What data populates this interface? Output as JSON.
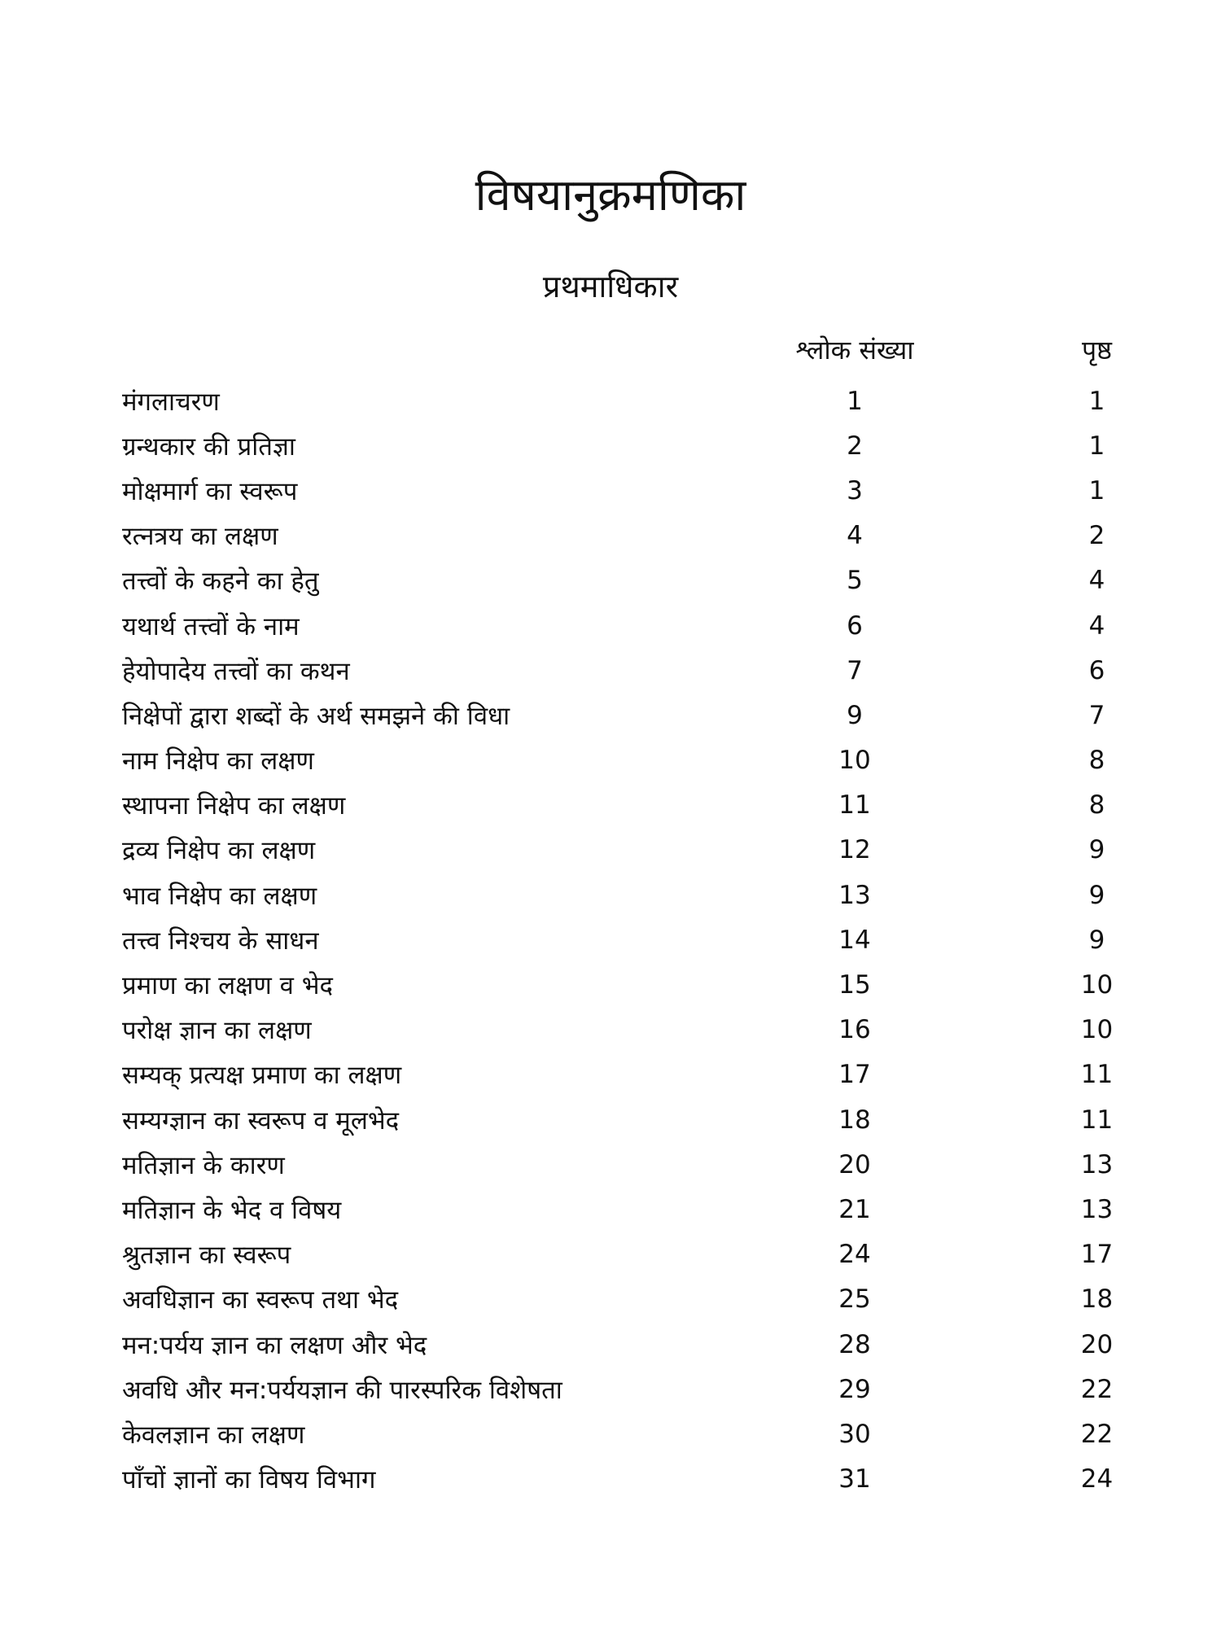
{
  "title": "विषयानुक्रमणिका",
  "subtitle": "प्रथमाधिकार",
  "headers": {
    "shloka": "श्लोक संख्या",
    "page": "पृष्ठ"
  },
  "entries": [
    {
      "topic": "मंगलाचरण",
      "shloka": "1",
      "page": "1"
    },
    {
      "topic": "ग्रन्थकार की प्रतिज्ञा",
      "shloka": "2",
      "page": "1"
    },
    {
      "topic": "मोक्षमार्ग का स्वरूप",
      "shloka": "3",
      "page": "1"
    },
    {
      "topic": "रत्नत्रय का लक्षण",
      "shloka": "4",
      "page": "2"
    },
    {
      "topic": "तत्त्वों के कहने का हेतु",
      "shloka": "5",
      "page": "4"
    },
    {
      "topic": "यथार्थ तत्त्वों के नाम",
      "shloka": "6",
      "page": "4"
    },
    {
      "topic": "हेयोपादेय तत्त्वों का कथन",
      "shloka": "7",
      "page": "6"
    },
    {
      "topic": "निक्षेपों द्वारा शब्दों के अर्थ समझने की विधा",
      "shloka": "9",
      "page": "7"
    },
    {
      "topic": "नाम निक्षेप का लक्षण",
      "shloka": "10",
      "page": "8"
    },
    {
      "topic": "स्थापना निक्षेप का लक्षण",
      "shloka": "11",
      "page": "8"
    },
    {
      "topic": "द्रव्य निक्षेप का लक्षण",
      "shloka": "12",
      "page": "9"
    },
    {
      "topic": "भाव निक्षेप का लक्षण",
      "shloka": "13",
      "page": "9"
    },
    {
      "topic": "तत्त्व निश्चय के साधन",
      "shloka": "14",
      "page": "9"
    },
    {
      "topic": "प्रमाण का लक्षण व भेद",
      "shloka": "15",
      "page": "10"
    },
    {
      "topic": "परोक्ष ज्ञान का लक्षण",
      "shloka": "16",
      "page": "10"
    },
    {
      "topic": "सम्यक् प्रत्यक्ष प्रमाण का लक्षण",
      "shloka": "17",
      "page": "11"
    },
    {
      "topic": "सम्यग्ज्ञान का स्वरूप व मूलभेद",
      "shloka": "18",
      "page": "11"
    },
    {
      "topic": "मतिज्ञान के कारण",
      "shloka": "20",
      "page": "13"
    },
    {
      "topic": "मतिज्ञान के भेद व विषय",
      "shloka": "21",
      "page": "13"
    },
    {
      "topic": "श्रुतज्ञान का स्वरूप",
      "shloka": "24",
      "page": "17"
    },
    {
      "topic": "अवधिज्ञान का स्वरूप तथा भेद",
      "shloka": "25",
      "page": "18"
    },
    {
      "topic": "मन:पर्यय ज्ञान का लक्षण और भेद",
      "shloka": "28",
      "page": "20"
    },
    {
      "topic": "अवधि और मन:पर्ययज्ञान की पारस्परिक विशेषता",
      "shloka": "29",
      "page": "22"
    },
    {
      "topic": "केवलज्ञान का लक्षण",
      "shloka": "30",
      "page": "22"
    },
    {
      "topic": "पाँचों ज्ञानों का विषय विभाग",
      "shloka": "31",
      "page": "24"
    }
  ]
}
